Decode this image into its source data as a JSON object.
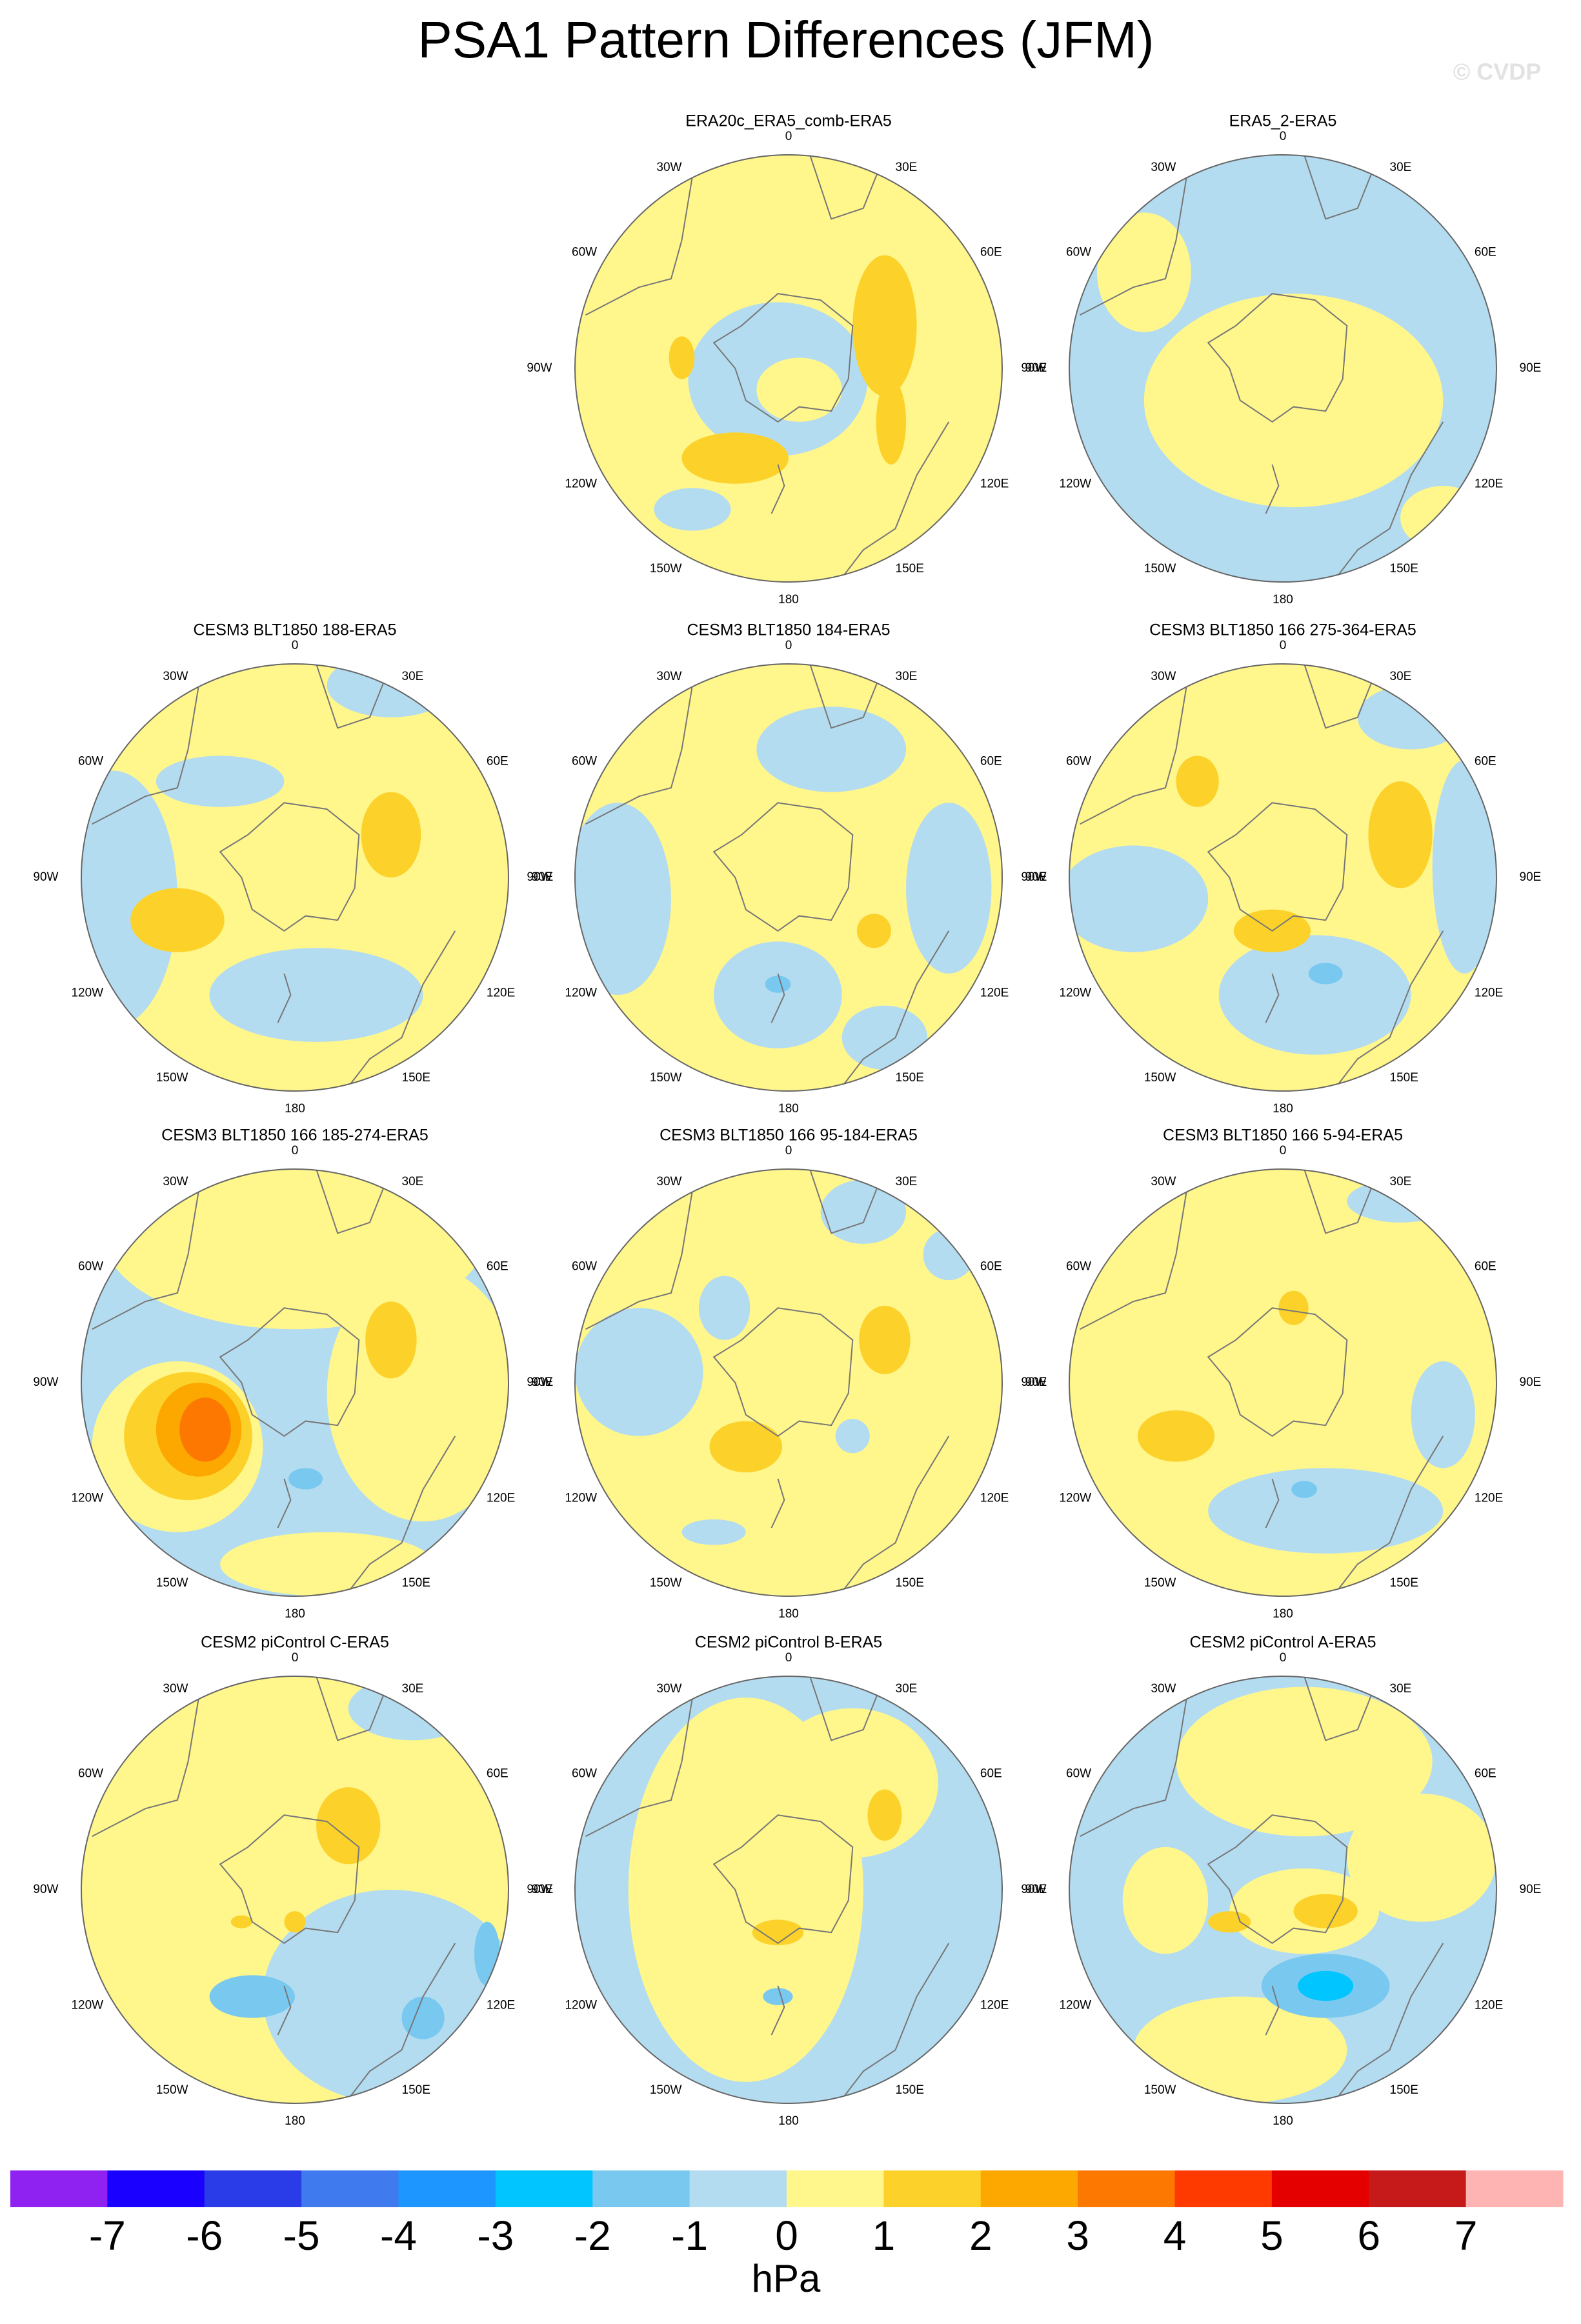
{
  "title": "PSA1 Pattern Differences (JFM)",
  "watermark": "© CVDP",
  "panels": [
    {
      "title": "ERA20c_ERA5_comb-ERA5"
    },
    {
      "title": "ERA5_2-ERA5"
    },
    {
      "title": "CESM3 BLT1850 188-ERA5"
    },
    {
      "title": "CESM3 BLT1850 184-ERA5"
    },
    {
      "title": "CESM3 BLT1850 166 275-364-ERA5"
    },
    {
      "title": "CESM3 BLT1850 166 185-274-ERA5"
    },
    {
      "title": "CESM3 BLT1850 166 95-184-ERA5"
    },
    {
      "title": "CESM3 BLT1850 166 5-94-ERA5"
    },
    {
      "title": "CESM2 piControl C-ERA5"
    },
    {
      "title": "CESM2 piControl B-ERA5"
    },
    {
      "title": "CESM2 piControl A-ERA5"
    }
  ],
  "longitude_labels": [
    "0",
    "30E",
    "60E",
    "90E",
    "120E",
    "150E",
    "180",
    "150W",
    "120W",
    "90W",
    "60W",
    "30W"
  ],
  "colorbar": {
    "colors": [
      "#8f22f0",
      "#1a00ff",
      "#2a3ce8",
      "#3f7aef",
      "#1e96ff",
      "#00c5ff",
      "#78c8f0",
      "#b4dcf0",
      "#fff68c",
      "#fcd22a",
      "#fca800",
      "#fc7800",
      "#ff3a00",
      "#e50000",
      "#c61a1a",
      "#ffb4b4"
    ],
    "tick_labels": [
      -7,
      -6,
      -5,
      -4,
      -3,
      -2,
      -1,
      0,
      1,
      2,
      3,
      4,
      5,
      6,
      7
    ],
    "unit": "hPa"
  }
}
